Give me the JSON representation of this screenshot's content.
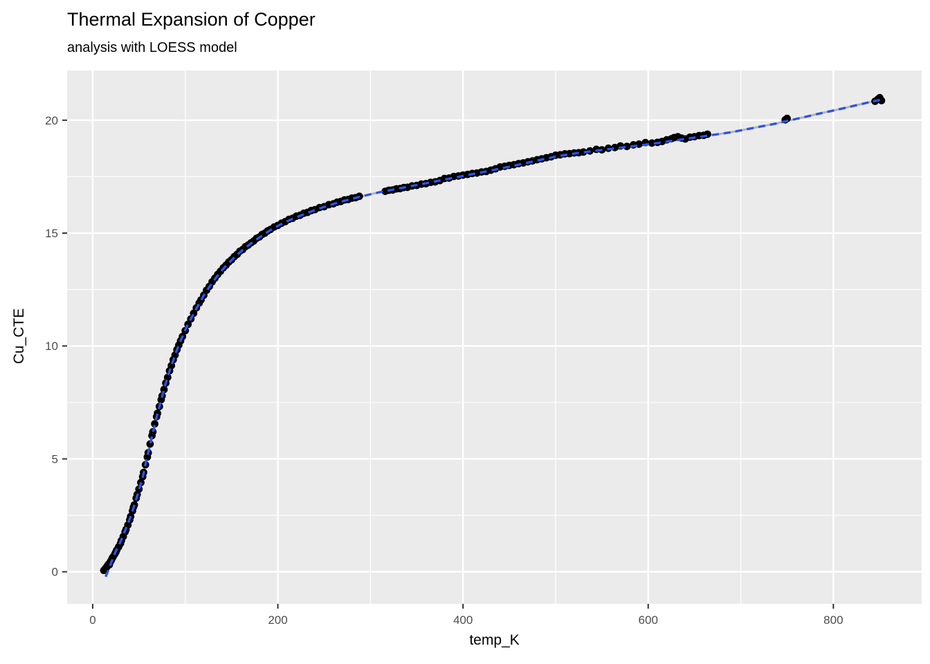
{
  "chart_data": {
    "type": "scatter",
    "title": "Thermal Expansion of Copper",
    "subtitle": "analysis with LOESS model",
    "xlabel": "temp_K",
    "ylabel": "Cu_CTE",
    "legend": "none",
    "grid": "on",
    "panel_bg": "#EBEBEB",
    "grid_color": "#FFFFFF",
    "tick_label_color": "#4D4D4D",
    "tick_mark_color": "#333333",
    "point_color": "#000000",
    "point_radius": 5.4,
    "xlim": [
      -27.6,
      895.4
    ],
    "ylim": [
      -1.42,
      22.2
    ],
    "x_ticks": [
      0,
      200,
      400,
      600,
      800
    ],
    "x_minor_gridlines": [
      100,
      300,
      500,
      700
    ],
    "y_ticks": [
      0,
      5,
      10,
      15,
      20
    ],
    "y_minor_gridlines": [
      2.5,
      7.5,
      12.5,
      17.5
    ],
    "series": [
      {
        "name": "Cu_CTE measurements",
        "points": [
          [
            12,
            0.06
          ],
          [
            13,
            0.1
          ],
          [
            14,
            0.16
          ],
          [
            15,
            0.2
          ],
          [
            16,
            0.27
          ],
          [
            17,
            0.33
          ],
          [
            18,
            0.31
          ],
          [
            19,
            0.44
          ],
          [
            20,
            0.5
          ],
          [
            21,
            0.59
          ],
          [
            22,
            0.66
          ],
          [
            24,
            0.79
          ],
          [
            25,
            0.87
          ],
          [
            26,
            0.96
          ],
          [
            28,
            1.1
          ],
          [
            30,
            1.25
          ],
          [
            31,
            1.38
          ],
          [
            33,
            1.56
          ],
          [
            35,
            1.77
          ],
          [
            36,
            1.87
          ],
          [
            38,
            2.07
          ],
          [
            40,
            2.3
          ],
          [
            41,
            2.45
          ],
          [
            43,
            2.7
          ],
          [
            44,
            2.86
          ],
          [
            45,
            2.96
          ],
          [
            47,
            3.26
          ],
          [
            48,
            3.42
          ],
          [
            50,
            3.66
          ],
          [
            52,
            3.95
          ],
          [
            54,
            4.21
          ],
          [
            55,
            4.4
          ],
          [
            57,
            4.74
          ],
          [
            59,
            5.08
          ],
          [
            60,
            5.27
          ],
          [
            62,
            5.66
          ],
          [
            64,
            6.03
          ],
          [
            65,
            6.2
          ],
          [
            67,
            6.55
          ],
          [
            69,
            6.87
          ],
          [
            70,
            7.02
          ],
          [
            72,
            7.32
          ],
          [
            74,
            7.62
          ],
          [
            75,
            7.79
          ],
          [
            77,
            8.07
          ],
          [
            79,
            8.36
          ],
          [
            81,
            8.61
          ],
          [
            83,
            8.9
          ],
          [
            85,
            9.13
          ],
          [
            87,
            9.39
          ],
          [
            89,
            9.6
          ],
          [
            91,
            9.84
          ],
          [
            93,
            10.04
          ],
          [
            95,
            10.23
          ],
          [
            97,
            10.42
          ],
          [
            100,
            10.68
          ],
          [
            103,
            10.96
          ],
          [
            106,
            11.2
          ],
          [
            109,
            11.45
          ],
          [
            112,
            11.69
          ],
          [
            115,
            11.9
          ],
          [
            117,
            12.04
          ],
          [
            120,
            12.25
          ],
          [
            123,
            12.47
          ],
          [
            126,
            12.64
          ],
          [
            129,
            12.84
          ],
          [
            132,
            13.0
          ],
          [
            135,
            13.17
          ],
          [
            138,
            13.31
          ],
          [
            141,
            13.46
          ],
          [
            144,
            13.58
          ],
          [
            147,
            13.72
          ],
          [
            150,
            13.82
          ],
          [
            153,
            13.96
          ],
          [
            156,
            14.06
          ],
          [
            159,
            14.2
          ],
          [
            162,
            14.27
          ],
          [
            165,
            14.4
          ],
          [
            168,
            14.47
          ],
          [
            171,
            14.57
          ],
          [
            174,
            14.65
          ],
          [
            177,
            14.77
          ],
          [
            180,
            14.83
          ],
          [
            183,
            14.94
          ],
          [
            186,
            15.0
          ],
          [
            189,
            15.1
          ],
          [
            192,
            15.16
          ],
          [
            196,
            15.27
          ],
          [
            200,
            15.34
          ],
          [
            204,
            15.44
          ],
          [
            208,
            15.51
          ],
          [
            212,
            15.61
          ],
          [
            216,
            15.66
          ],
          [
            220,
            15.75
          ],
          [
            224,
            15.79
          ],
          [
            228,
            15.88
          ],
          [
            232,
            15.92
          ],
          [
            236,
            16.0
          ],
          [
            240,
            16.04
          ],
          [
            245,
            16.13
          ],
          [
            250,
            16.17
          ],
          [
            255,
            16.26
          ],
          [
            260,
            16.3
          ],
          [
            264,
            16.37
          ],
          [
            268,
            16.4
          ],
          [
            272,
            16.47
          ],
          [
            276,
            16.49
          ],
          [
            280,
            16.55
          ],
          [
            284,
            16.57
          ],
          [
            288,
            16.63
          ],
          [
            316,
            16.85
          ],
          [
            320,
            16.9
          ],
          [
            324,
            16.91
          ],
          [
            328,
            16.96
          ],
          [
            332,
            16.97
          ],
          [
            336,
            17.02
          ],
          [
            340,
            17.03
          ],
          [
            345,
            17.09
          ],
          [
            350,
            17.11
          ],
          [
            355,
            17.17
          ],
          [
            360,
            17.19
          ],
          [
            365,
            17.25
          ],
          [
            370,
            17.27
          ],
          [
            375,
            17.33
          ],
          [
            380,
            17.42
          ],
          [
            385,
            17.44
          ],
          [
            390,
            17.51
          ],
          [
            395,
            17.53
          ],
          [
            400,
            17.57
          ],
          [
            405,
            17.6
          ],
          [
            410,
            17.64
          ],
          [
            415,
            17.66
          ],
          [
            420,
            17.71
          ],
          [
            425,
            17.73
          ],
          [
            430,
            17.79
          ],
          [
            435,
            17.85
          ],
          [
            440,
            17.93
          ],
          [
            445,
            17.96
          ],
          [
            450,
            18.0
          ],
          [
            455,
            18.03
          ],
          [
            460,
            18.08
          ],
          [
            465,
            18.11
          ],
          [
            470,
            18.16
          ],
          [
            475,
            18.2
          ],
          [
            480,
            18.25
          ],
          [
            485,
            18.29
          ],
          [
            490,
            18.34
          ],
          [
            495,
            18.38
          ],
          [
            500,
            18.45
          ],
          [
            505,
            18.47
          ],
          [
            510,
            18.51
          ],
          [
            515,
            18.52
          ],
          [
            520,
            18.55
          ],
          [
            525,
            18.56
          ],
          [
            530,
            18.59
          ],
          [
            537,
            18.64
          ],
          [
            544,
            18.71
          ],
          [
            550,
            18.69
          ],
          [
            557,
            18.76
          ],
          [
            564,
            18.79
          ],
          [
            570,
            18.86
          ],
          [
            577,
            18.84
          ],
          [
            584,
            18.91
          ],
          [
            590,
            18.94
          ],
          [
            597,
            19.01
          ],
          [
            604,
            18.99
          ],
          [
            610,
            19.02
          ],
          [
            615,
            19.06
          ],
          [
            620,
            19.13
          ],
          [
            625,
            19.18
          ],
          [
            628,
            19.23
          ],
          [
            632,
            19.27
          ],
          [
            636,
            19.21
          ],
          [
            640,
            19.17
          ],
          [
            645,
            19.25
          ],
          [
            650,
            19.27
          ],
          [
            655,
            19.32
          ],
          [
            660,
            19.33
          ],
          [
            664,
            19.38
          ],
          [
            748,
            20.02
          ],
          [
            750,
            20.08
          ],
          [
            845,
            20.84
          ],
          [
            848,
            20.93
          ],
          [
            850,
            21.0
          ],
          [
            852,
            20.87
          ]
        ]
      }
    ],
    "smooth_line": {
      "name": "LOESS fit",
      "color": "#2E53E6",
      "underlay_color": "#B3B3B3",
      "width": 3.4,
      "dash": [
        10,
        7
      ],
      "points": [
        [
          14,
          -0.22
        ],
        [
          18,
          0.18
        ],
        [
          22,
          0.62
        ],
        [
          26,
          1.0
        ],
        [
          30,
          1.32
        ],
        [
          34,
          1.72
        ],
        [
          38,
          2.12
        ],
        [
          42,
          2.56
        ],
        [
          46,
          3.08
        ],
        [
          50,
          3.62
        ],
        [
          54,
          4.18
        ],
        [
          58,
          4.92
        ],
        [
          62,
          5.62
        ],
        [
          66,
          6.32
        ],
        [
          70,
          7.0
        ],
        [
          74,
          7.6
        ],
        [
          78,
          8.22
        ],
        [
          82,
          8.76
        ],
        [
          86,
          9.24
        ],
        [
          90,
          9.72
        ],
        [
          94,
          10.14
        ],
        [
          98,
          10.52
        ],
        [
          102,
          10.88
        ],
        [
          106,
          11.2
        ],
        [
          110,
          11.5
        ],
        [
          115,
          11.88
        ],
        [
          120,
          12.24
        ],
        [
          125,
          12.55
        ],
        [
          130,
          12.85
        ],
        [
          135,
          13.12
        ],
        [
          140,
          13.37
        ],
        [
          145,
          13.59
        ],
        [
          150,
          13.8
        ],
        [
          155,
          14.0
        ],
        [
          160,
          14.18
        ],
        [
          165,
          14.35
        ],
        [
          170,
          14.51
        ],
        [
          175,
          14.66
        ],
        [
          180,
          14.8
        ],
        [
          185,
          14.94
        ],
        [
          190,
          15.08
        ],
        [
          195,
          15.2
        ],
        [
          200,
          15.32
        ],
        [
          210,
          15.52
        ],
        [
          220,
          15.7
        ],
        [
          230,
          15.86
        ],
        [
          240,
          16.02
        ],
        [
          250,
          16.16
        ],
        [
          260,
          16.29
        ],
        [
          270,
          16.41
        ],
        [
          280,
          16.52
        ],
        [
          290,
          16.62
        ],
        [
          300,
          16.72
        ],
        [
          310,
          16.81
        ],
        [
          320,
          16.89
        ],
        [
          330,
          16.97
        ],
        [
          340,
          17.05
        ],
        [
          350,
          17.13
        ],
        [
          360,
          17.21
        ],
        [
          370,
          17.29
        ],
        [
          380,
          17.37
        ],
        [
          390,
          17.45
        ],
        [
          400,
          17.53
        ],
        [
          410,
          17.61
        ],
        [
          420,
          17.69
        ],
        [
          430,
          17.77
        ],
        [
          440,
          17.86
        ],
        [
          450,
          17.94
        ],
        [
          460,
          18.03
        ],
        [
          470,
          18.12
        ],
        [
          480,
          18.21
        ],
        [
          490,
          18.3
        ],
        [
          500,
          18.39
        ],
        [
          510,
          18.46
        ],
        [
          520,
          18.52
        ],
        [
          530,
          18.58
        ],
        [
          540,
          18.63
        ],
        [
          550,
          18.68
        ],
        [
          560,
          18.73
        ],
        [
          570,
          18.78
        ],
        [
          580,
          18.83
        ],
        [
          590,
          18.88
        ],
        [
          600,
          18.93
        ],
        [
          610,
          18.99
        ],
        [
          620,
          19.05
        ],
        [
          630,
          19.11
        ],
        [
          640,
          19.17
        ],
        [
          650,
          19.23
        ],
        [
          660,
          19.29
        ],
        [
          670,
          19.35
        ],
        [
          680,
          19.41
        ],
        [
          690,
          19.47
        ],
        [
          700,
          19.55
        ],
        [
          710,
          19.63
        ],
        [
          720,
          19.71
        ],
        [
          730,
          19.79
        ],
        [
          740,
          19.87
        ],
        [
          750,
          19.97
        ],
        [
          760,
          20.06
        ],
        [
          770,
          20.15
        ],
        [
          780,
          20.25
        ],
        [
          790,
          20.34
        ],
        [
          800,
          20.43
        ],
        [
          810,
          20.52
        ],
        [
          820,
          20.62
        ],
        [
          830,
          20.71
        ],
        [
          840,
          20.81
        ],
        [
          848,
          20.88
        ],
        [
          852,
          20.91
        ]
      ]
    }
  }
}
